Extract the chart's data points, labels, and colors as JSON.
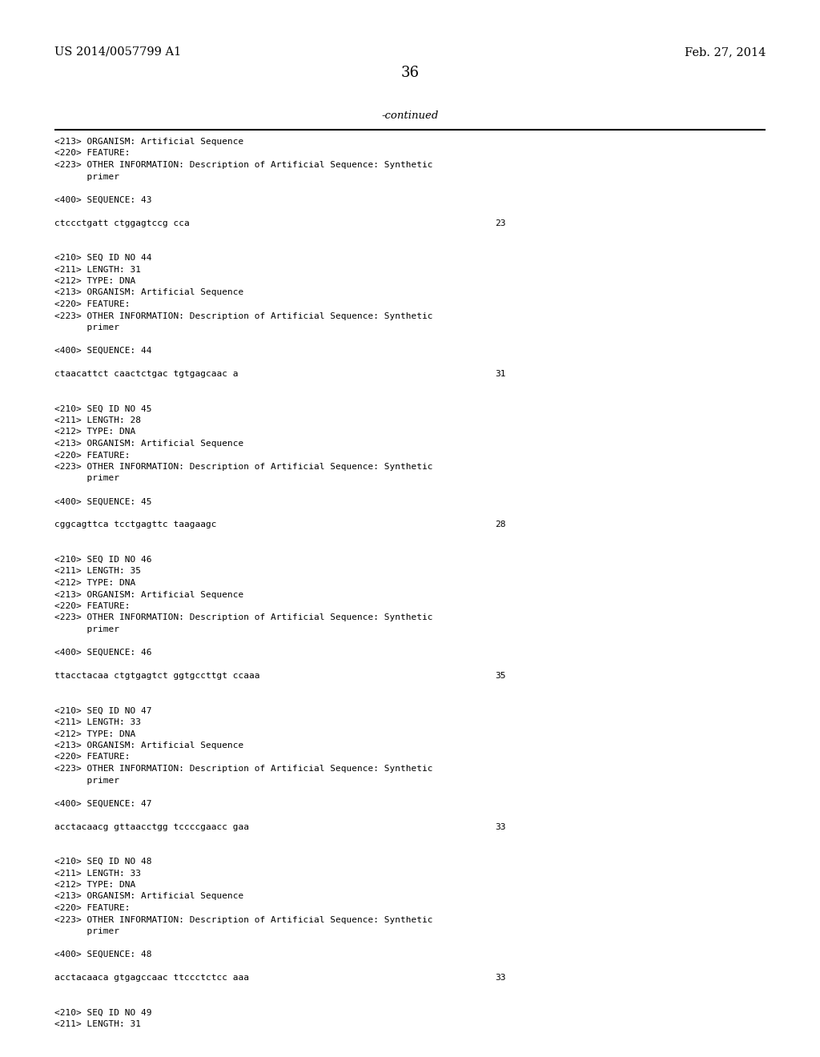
{
  "bg_color": "#ffffff",
  "header_left": "US 2014/0057799 A1",
  "header_right": "Feb. 27, 2014",
  "page_number": "36",
  "continued_text": "-continued",
  "content_lines": [
    {
      "text": "<213> ORGANISM: Artificial Sequence",
      "indent": false
    },
    {
      "text": "<220> FEATURE:",
      "indent": false
    },
    {
      "text": "<223> OTHER INFORMATION: Description of Artificial Sequence: Synthetic",
      "indent": false
    },
    {
      "text": "      primer",
      "indent": false
    },
    {
      "text": "",
      "indent": false
    },
    {
      "text": "<400> SEQUENCE: 43",
      "indent": false
    },
    {
      "text": "",
      "indent": false
    },
    {
      "text": "ctccctgatt ctggagtccg cca",
      "indent": false,
      "num": "23"
    },
    {
      "text": "",
      "indent": false
    },
    {
      "text": "",
      "indent": false
    },
    {
      "text": "<210> SEQ ID NO 44",
      "indent": false
    },
    {
      "text": "<211> LENGTH: 31",
      "indent": false
    },
    {
      "text": "<212> TYPE: DNA",
      "indent": false
    },
    {
      "text": "<213> ORGANISM: Artificial Sequence",
      "indent": false
    },
    {
      "text": "<220> FEATURE:",
      "indent": false
    },
    {
      "text": "<223> OTHER INFORMATION: Description of Artificial Sequence: Synthetic",
      "indent": false
    },
    {
      "text": "      primer",
      "indent": false
    },
    {
      "text": "",
      "indent": false
    },
    {
      "text": "<400> SEQUENCE: 44",
      "indent": false
    },
    {
      "text": "",
      "indent": false
    },
    {
      "text": "ctaacattct caactctgac tgtgagcaac a",
      "indent": false,
      "num": "31"
    },
    {
      "text": "",
      "indent": false
    },
    {
      "text": "",
      "indent": false
    },
    {
      "text": "<210> SEQ ID NO 45",
      "indent": false
    },
    {
      "text": "<211> LENGTH: 28",
      "indent": false
    },
    {
      "text": "<212> TYPE: DNA",
      "indent": false
    },
    {
      "text": "<213> ORGANISM: Artificial Sequence",
      "indent": false
    },
    {
      "text": "<220> FEATURE:",
      "indent": false
    },
    {
      "text": "<223> OTHER INFORMATION: Description of Artificial Sequence: Synthetic",
      "indent": false
    },
    {
      "text": "      primer",
      "indent": false
    },
    {
      "text": "",
      "indent": false
    },
    {
      "text": "<400> SEQUENCE: 45",
      "indent": false
    },
    {
      "text": "",
      "indent": false
    },
    {
      "text": "cggcagttca tcctgagttc taagaagc",
      "indent": false,
      "num": "28"
    },
    {
      "text": "",
      "indent": false
    },
    {
      "text": "",
      "indent": false
    },
    {
      "text": "<210> SEQ ID NO 46",
      "indent": false
    },
    {
      "text": "<211> LENGTH: 35",
      "indent": false
    },
    {
      "text": "<212> TYPE: DNA",
      "indent": false
    },
    {
      "text": "<213> ORGANISM: Artificial Sequence",
      "indent": false
    },
    {
      "text": "<220> FEATURE:",
      "indent": false
    },
    {
      "text": "<223> OTHER INFORMATION: Description of Artificial Sequence: Synthetic",
      "indent": false
    },
    {
      "text": "      primer",
      "indent": false
    },
    {
      "text": "",
      "indent": false
    },
    {
      "text": "<400> SEQUENCE: 46",
      "indent": false
    },
    {
      "text": "",
      "indent": false
    },
    {
      "text": "ttacctacaa ctgtgagtct ggtgccttgt ccaaa",
      "indent": false,
      "num": "35"
    },
    {
      "text": "",
      "indent": false
    },
    {
      "text": "",
      "indent": false
    },
    {
      "text": "<210> SEQ ID NO 47",
      "indent": false
    },
    {
      "text": "<211> LENGTH: 33",
      "indent": false
    },
    {
      "text": "<212> TYPE: DNA",
      "indent": false
    },
    {
      "text": "<213> ORGANISM: Artificial Sequence",
      "indent": false
    },
    {
      "text": "<220> FEATURE:",
      "indent": false
    },
    {
      "text": "<223> OTHER INFORMATION: Description of Artificial Sequence: Synthetic",
      "indent": false
    },
    {
      "text": "      primer",
      "indent": false
    },
    {
      "text": "",
      "indent": false
    },
    {
      "text": "<400> SEQUENCE: 47",
      "indent": false
    },
    {
      "text": "",
      "indent": false
    },
    {
      "text": "acctacaacg gttaacctgg tccccgaacc gaa",
      "indent": false,
      "num": "33"
    },
    {
      "text": "",
      "indent": false
    },
    {
      "text": "",
      "indent": false
    },
    {
      "text": "<210> SEQ ID NO 48",
      "indent": false
    },
    {
      "text": "<211> LENGTH: 33",
      "indent": false
    },
    {
      "text": "<212> TYPE: DNA",
      "indent": false
    },
    {
      "text": "<213> ORGANISM: Artificial Sequence",
      "indent": false
    },
    {
      "text": "<220> FEATURE:",
      "indent": false
    },
    {
      "text": "<223> OTHER INFORMATION: Description of Artificial Sequence: Synthetic",
      "indent": false
    },
    {
      "text": "      primer",
      "indent": false
    },
    {
      "text": "",
      "indent": false
    },
    {
      "text": "<400> SEQUENCE: 48",
      "indent": false
    },
    {
      "text": "",
      "indent": false
    },
    {
      "text": "acctacaaca gtgagccaac ttccctctcc aaa",
      "indent": false,
      "num": "33"
    },
    {
      "text": "",
      "indent": false
    },
    {
      "text": "",
      "indent": false
    },
    {
      "text": "<210> SEQ ID NO 49",
      "indent": false
    },
    {
      "text": "<211> LENGTH: 31",
      "indent": false
    }
  ]
}
